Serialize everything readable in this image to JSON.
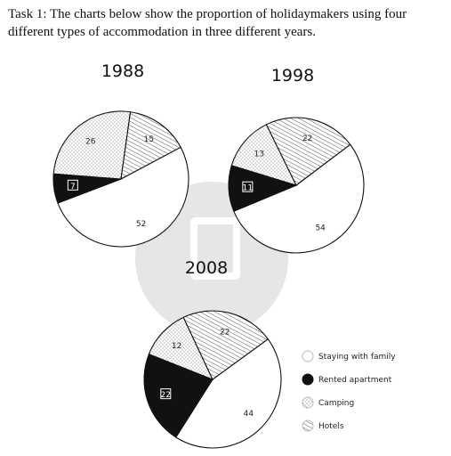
{
  "task_text": "Task 1: The charts below show the proportion of holidaymakers using four different types of accommodation in three different years.",
  "legend": [
    {
      "label": "Staying with family",
      "pattern": "plain"
    },
    {
      "label": "Rented apartment",
      "pattern": "solid"
    },
    {
      "label": "Camping",
      "pattern": "dots"
    },
    {
      "label": "Hotels",
      "pattern": "hatch"
    }
  ],
  "colors": {
    "solid": "#111111",
    "outline": "#111111",
    "background": "#ffffff",
    "watermark": "#e6e6e6"
  },
  "chart_data": [
    {
      "type": "pie",
      "title": "1988",
      "categories": [
        "Staying with family",
        "Rented apartment",
        "Camping",
        "Hotels"
      ],
      "values": [
        52,
        7,
        26,
        15
      ]
    },
    {
      "type": "pie",
      "title": "1998",
      "categories": [
        "Staying with family",
        "Rented apartment",
        "Camping",
        "Hotels"
      ],
      "values": [
        54,
        11,
        13,
        22
      ]
    },
    {
      "type": "pie",
      "title": "2008",
      "categories": [
        "Staying with family",
        "Rented apartment",
        "Camping",
        "Hotels"
      ],
      "values": [
        44,
        22,
        12,
        22
      ]
    }
  ]
}
